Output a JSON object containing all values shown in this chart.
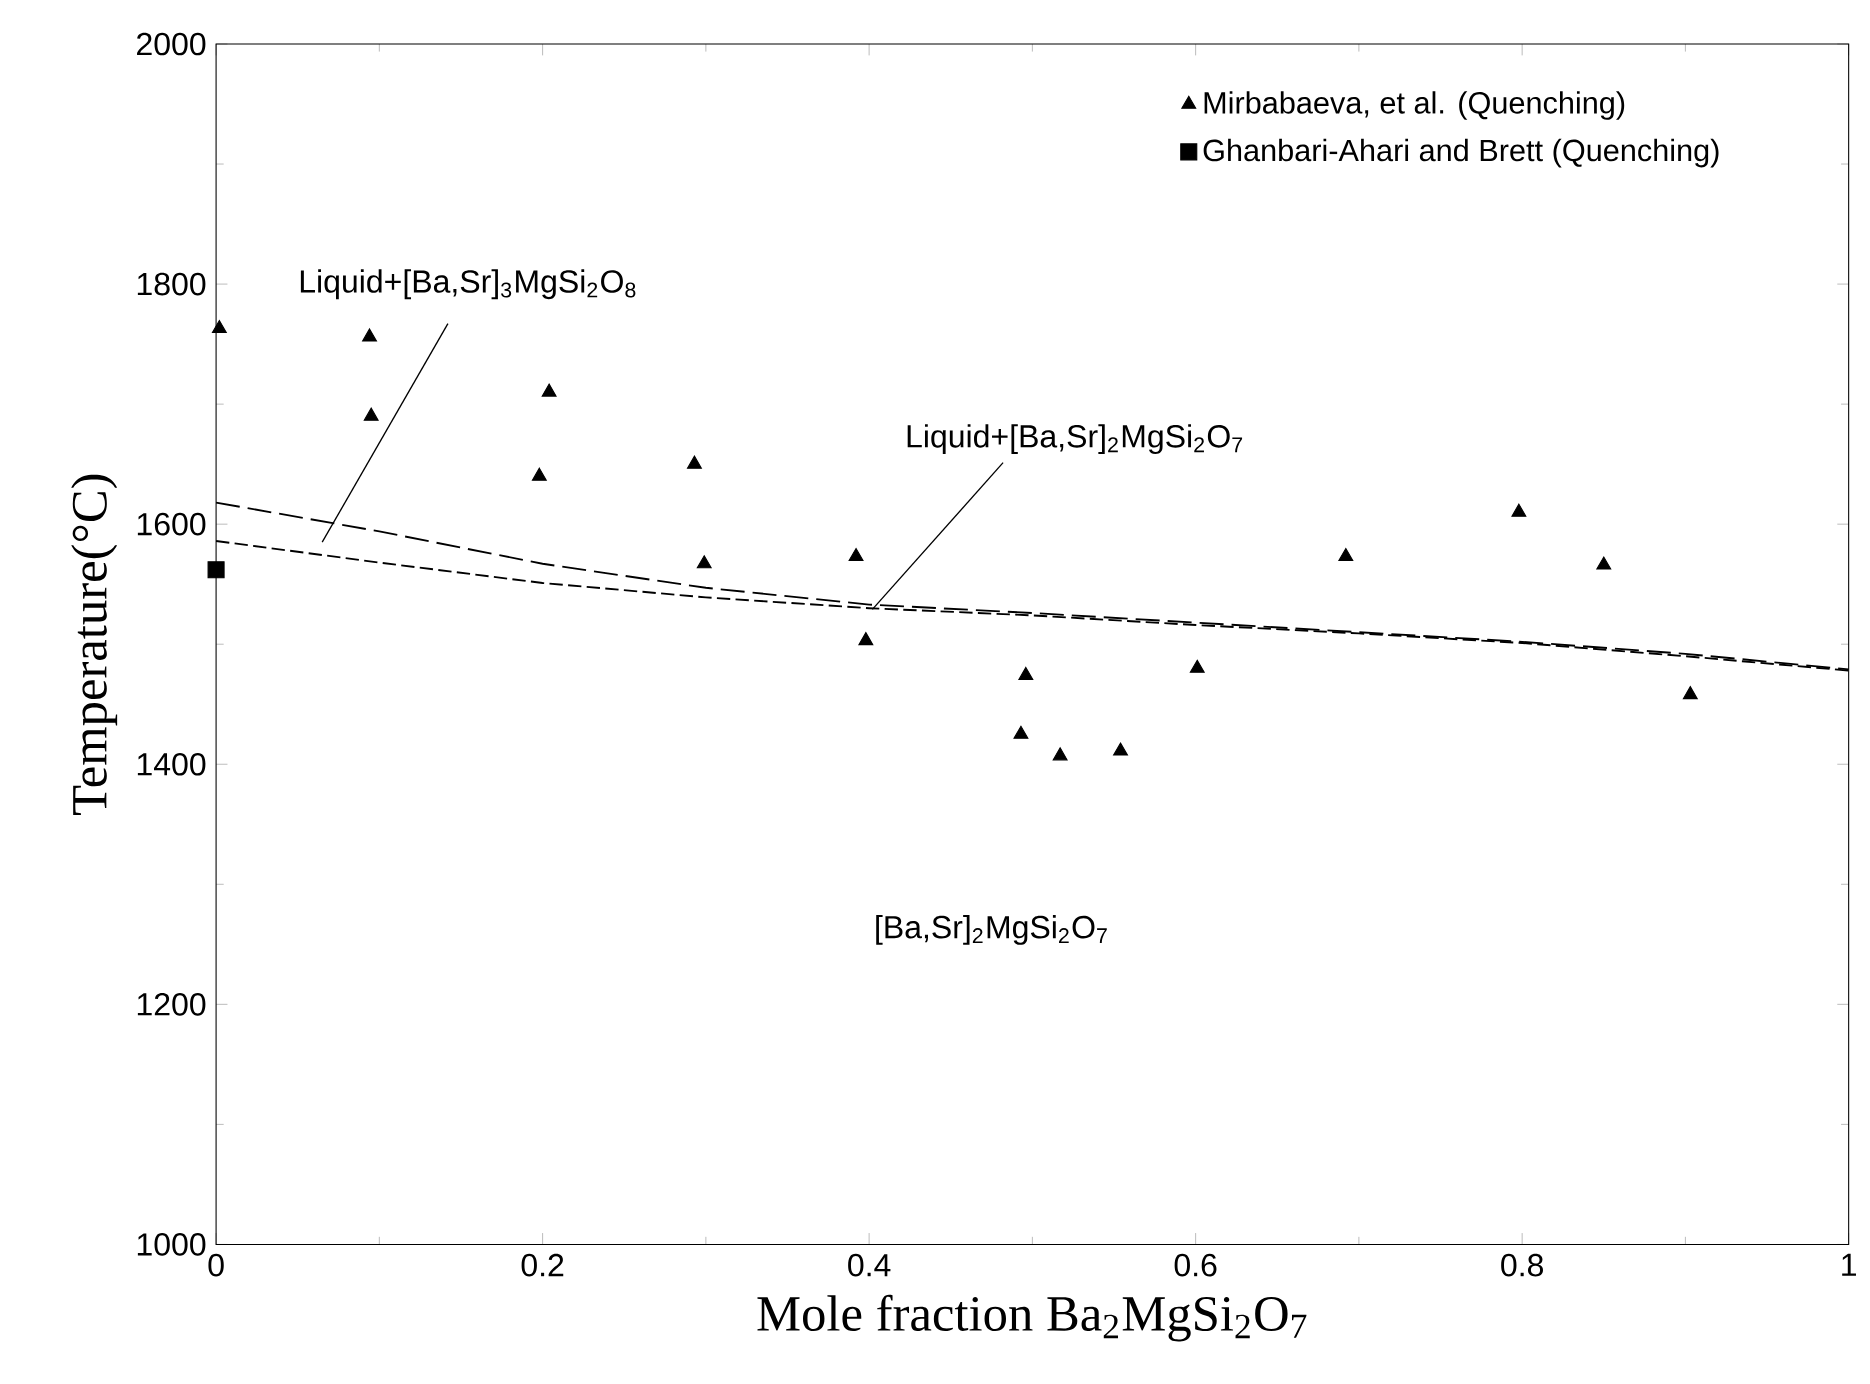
{
  "chart_data": {
    "type": "scatter",
    "xlabel": "Mole fraction Ba$_{2}$MgSi$_{2}$O$_{7}$",
    "ylabel": "Temperature(°C)",
    "xlim": [
      0,
      1
    ],
    "xticks": [
      0,
      0.2,
      0.4,
      0.6,
      0.8,
      1
    ],
    "ylim": [
      1000,
      2000
    ],
    "yticks": [
      1000,
      1200,
      1400,
      1600,
      1800,
      2000
    ],
    "legend": "top right",
    "series": [
      {
        "name": "Mirbabaeva, et al. (Quenching)",
        "marker": "triangle",
        "color": "#000000",
        "x": [
          0.002,
          0.094,
          0.095,
          0.198,
          0.204,
          0.293,
          0.299,
          0.392,
          0.398,
          0.493,
          0.496,
          0.517,
          0.554,
          0.601,
          0.692,
          0.798,
          0.85,
          0.903
        ],
        "values": [
          1763,
          1756,
          1690,
          1640,
          1710,
          1650,
          1567,
          1573,
          1503,
          1425,
          1474,
          1407,
          1411,
          1480,
          1573,
          1610,
          1566,
          1458
        ]
      },
      {
        "name": "Ghanbari-Ahari and Brett (Quenching)",
        "marker": "square",
        "color": "#000000",
        "x": [
          0
        ],
        "values": [
          1562
        ]
      },
      {
        "type": "line",
        "marker": "none",
        "line_style": "dashed",
        "color": "#000000",
        "x": [
          0,
          0.1,
          0.2,
          0.3,
          0.4,
          0.5,
          0.6,
          0.7,
          0.8,
          0.9,
          1
        ],
        "values": [
          1618,
          1594,
          1567,
          1547,
          1533,
          1526,
          1518,
          1510,
          1502,
          1492,
          1479
        ]
      },
      {
        "type": "line",
        "marker": "none",
        "line_style": "dashed",
        "color": "#000000",
        "x": [
          0,
          0.1,
          0.2,
          0.3,
          0.4,
          0.5,
          0.6,
          0.7,
          0.8,
          0.9,
          1
        ],
        "values": [
          1586,
          1568,
          1551,
          1539,
          1530,
          1524,
          1516,
          1509,
          1501,
          1490,
          1478
        ]
      }
    ],
    "annotations": [
      "Liquid+[Ba,Sr]$_{3}$MgSi$_{2}$O$_{8}$",
      {
        "text": "Liquid+[Ba,Sr]$_{2}$MgSi$_{2}$O$_{7}$",
        "x": 0.402,
        "y": 1529
      },
      "[Ba,Sr]$_{2}$MgSi$_{2}$O$_{7}$"
    ]
  }
}
